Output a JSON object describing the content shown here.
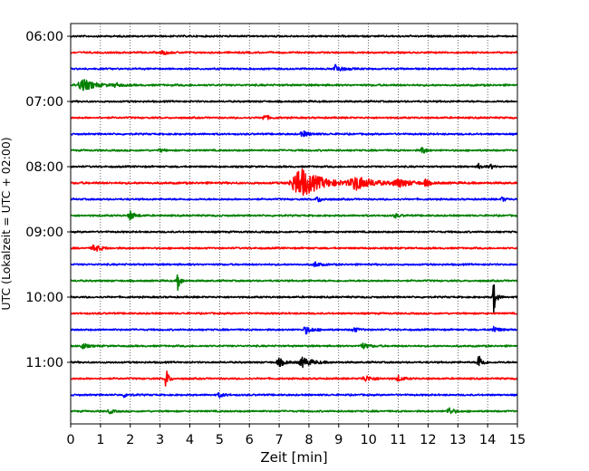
{
  "chart_data": {
    "type": "line",
    "subtype": "helicorder",
    "xlabel": "Zeit  [min]",
    "ylabel": "UTC (Lokalzeit = UTC + 02:00)",
    "xlim": [
      0,
      15
    ],
    "x_ticks": [
      0,
      1,
      2,
      3,
      4,
      5,
      6,
      7,
      8,
      9,
      10,
      11,
      12,
      13,
      14,
      15
    ],
    "x_grid": "dotted vertical lines at each minute",
    "row_interval_min": 15,
    "y_ticks": [
      {
        "label": "06:00",
        "row": 0
      },
      {
        "label": "07:00",
        "row": 4
      },
      {
        "label": "08:00",
        "row": 8
      },
      {
        "label": "09:00",
        "row": 12
      },
      {
        "label": "10:00",
        "row": 16
      },
      {
        "label": "11:00",
        "row": 20
      }
    ],
    "color_cycle": [
      "#000000",
      "#ff0000",
      "#0000ff",
      "#008000"
    ],
    "traces": [
      {
        "start": "06:00",
        "color": "#000000",
        "noise": 1.0,
        "events": []
      },
      {
        "start": "06:15",
        "color": "#ff0000",
        "noise": 1.0,
        "events": [
          {
            "t": 3.1,
            "amp": 2.5,
            "dur": 0.3
          }
        ]
      },
      {
        "start": "06:30",
        "color": "#0000ff",
        "noise": 1.0,
        "events": [
          {
            "t": 8.9,
            "amp": 4.5,
            "dur": 0.4
          }
        ]
      },
      {
        "start": "06:45",
        "color": "#008000",
        "noise": 1.1,
        "events": [
          {
            "t": 0.4,
            "amp": 6.5,
            "dur": 0.7
          },
          {
            "t": 1.5,
            "amp": 2,
            "dur": 0.3
          }
        ]
      },
      {
        "start": "07:00",
        "color": "#000000",
        "noise": 1.0,
        "events": []
      },
      {
        "start": "07:15",
        "color": "#ff0000",
        "noise": 1.0,
        "events": [
          {
            "t": 6.5,
            "amp": 3,
            "dur": 0.3
          }
        ]
      },
      {
        "start": "07:30",
        "color": "#0000ff",
        "noise": 1.0,
        "events": [
          {
            "t": 7.8,
            "amp": 3,
            "dur": 0.4
          }
        ]
      },
      {
        "start": "07:45",
        "color": "#008000",
        "noise": 1.0,
        "events": [
          {
            "t": 3.0,
            "amp": 2,
            "dur": 0.2
          },
          {
            "t": 11.8,
            "amp": 5,
            "dur": 0.2
          }
        ]
      },
      {
        "start": "08:00",
        "color": "#000000",
        "noise": 1.0,
        "events": [
          {
            "t": 13.7,
            "amp": 3,
            "dur": 0.2
          },
          {
            "t": 14.1,
            "amp": 2.5,
            "dur": 0.2
          }
        ]
      },
      {
        "start": "08:15",
        "color": "#ff0000",
        "noise": 1.2,
        "events": [
          {
            "t": 7.7,
            "amp": 17,
            "dur": 1.2
          },
          {
            "t": 9.6,
            "amp": 7,
            "dur": 1.0
          },
          {
            "t": 11.0,
            "amp": 4,
            "dur": 0.8
          },
          {
            "t": 11.9,
            "amp": 4,
            "dur": 0.2
          }
        ]
      },
      {
        "start": "08:30",
        "color": "#0000ff",
        "noise": 1.0,
        "events": [
          {
            "t": 8.3,
            "amp": 3,
            "dur": 0.3
          },
          {
            "t": 14.5,
            "amp": 2.5,
            "dur": 0.2
          }
        ]
      },
      {
        "start": "08:45",
        "color": "#008000",
        "noise": 1.0,
        "events": [
          {
            "t": 2.0,
            "amp": 5,
            "dur": 0.3
          },
          {
            "t": 10.9,
            "amp": 2,
            "dur": 0.3
          }
        ]
      },
      {
        "start": "09:00",
        "color": "#000000",
        "noise": 1.0,
        "events": []
      },
      {
        "start": "09:15",
        "color": "#ff0000",
        "noise": 1.0,
        "events": [
          {
            "t": 0.8,
            "amp": 4,
            "dur": 0.4
          }
        ]
      },
      {
        "start": "09:30",
        "color": "#0000ff",
        "noise": 1.0,
        "events": [
          {
            "t": 8.2,
            "amp": 3,
            "dur": 0.3
          }
        ]
      },
      {
        "start": "09:45",
        "color": "#008000",
        "noise": 1.0,
        "events": [
          {
            "t": 3.6,
            "amp": 11,
            "dur": 0.15
          }
        ]
      },
      {
        "start": "10:00",
        "color": "#000000",
        "noise": 1.0,
        "events": [
          {
            "t": 14.2,
            "amp": 19,
            "dur": 0.15
          }
        ]
      },
      {
        "start": "10:15",
        "color": "#ff0000",
        "noise": 1.0,
        "events": []
      },
      {
        "start": "10:30",
        "color": "#0000ff",
        "noise": 1.0,
        "events": [
          {
            "t": 7.9,
            "amp": 4,
            "dur": 0.4
          },
          {
            "t": 9.5,
            "amp": 2.5,
            "dur": 0.3
          },
          {
            "t": 14.2,
            "amp": 3.5,
            "dur": 0.3
          }
        ]
      },
      {
        "start": "10:45",
        "color": "#008000",
        "noise": 1.0,
        "events": [
          {
            "t": 0.4,
            "amp": 3,
            "dur": 0.3
          },
          {
            "t": 9.8,
            "amp": 3,
            "dur": 0.4
          }
        ]
      },
      {
        "start": "11:00",
        "color": "#000000",
        "noise": 1.0,
        "events": [
          {
            "t": 7.0,
            "amp": 4,
            "dur": 0.4
          },
          {
            "t": 7.8,
            "amp": 5,
            "dur": 0.6
          },
          {
            "t": 13.7,
            "amp": 10,
            "dur": 0.2
          }
        ]
      },
      {
        "start": "11:15",
        "color": "#ff0000",
        "noise": 1.0,
        "events": [
          {
            "t": 3.2,
            "amp": 12,
            "dur": 0.15
          },
          {
            "t": 9.9,
            "amp": 3,
            "dur": 0.5
          },
          {
            "t": 11.0,
            "amp": 3,
            "dur": 0.3
          }
        ]
      },
      {
        "start": "11:30",
        "color": "#0000ff",
        "noise": 1.0,
        "events": [
          {
            "t": 1.8,
            "amp": 2,
            "dur": 0.3
          },
          {
            "t": 5.0,
            "amp": 2.5,
            "dur": 0.3
          }
        ]
      },
      {
        "start": "11:45",
        "color": "#008000",
        "noise": 1.0,
        "events": [
          {
            "t": 1.3,
            "amp": 3,
            "dur": 0.2
          },
          {
            "t": 12.7,
            "amp": 4,
            "dur": 0.3
          }
        ]
      }
    ]
  }
}
